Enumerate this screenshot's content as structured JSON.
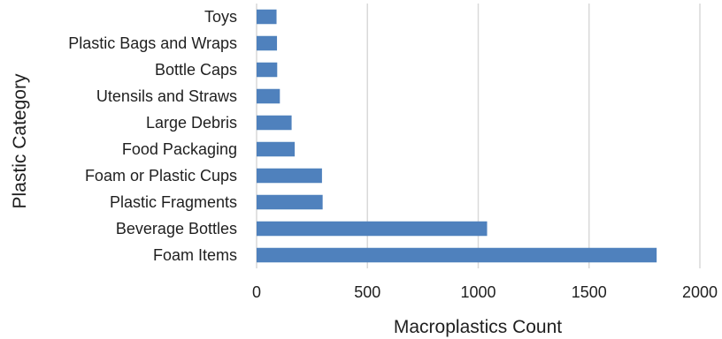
{
  "chart_data": {
    "type": "bar",
    "orientation": "horizontal",
    "title": "",
    "xlabel": "Macroplastics Count",
    "ylabel": "Plastic Category",
    "categories": [
      "Toys",
      "Plastic Bags and Wraps",
      "Bottle Caps",
      "Utensils and Straws",
      "Large Debris",
      "Food Packaging",
      "Foam or Plastic Cups",
      "Plastic Fragments",
      "Beverage Bottles",
      "Foam Items"
    ],
    "values": [
      90,
      92,
      93,
      105,
      158,
      172,
      295,
      298,
      1040,
      1805
    ],
    "xlim": [
      0,
      2000
    ],
    "xticks": [
      "0",
      "500",
      "1000",
      "1500",
      "2000"
    ],
    "xtick_values": [
      0,
      500,
      1000,
      1500,
      2000
    ],
    "grid": "vertical",
    "legend": "none",
    "bar_color": "#4f81bd",
    "grid_color": "#d9d9d9"
  }
}
